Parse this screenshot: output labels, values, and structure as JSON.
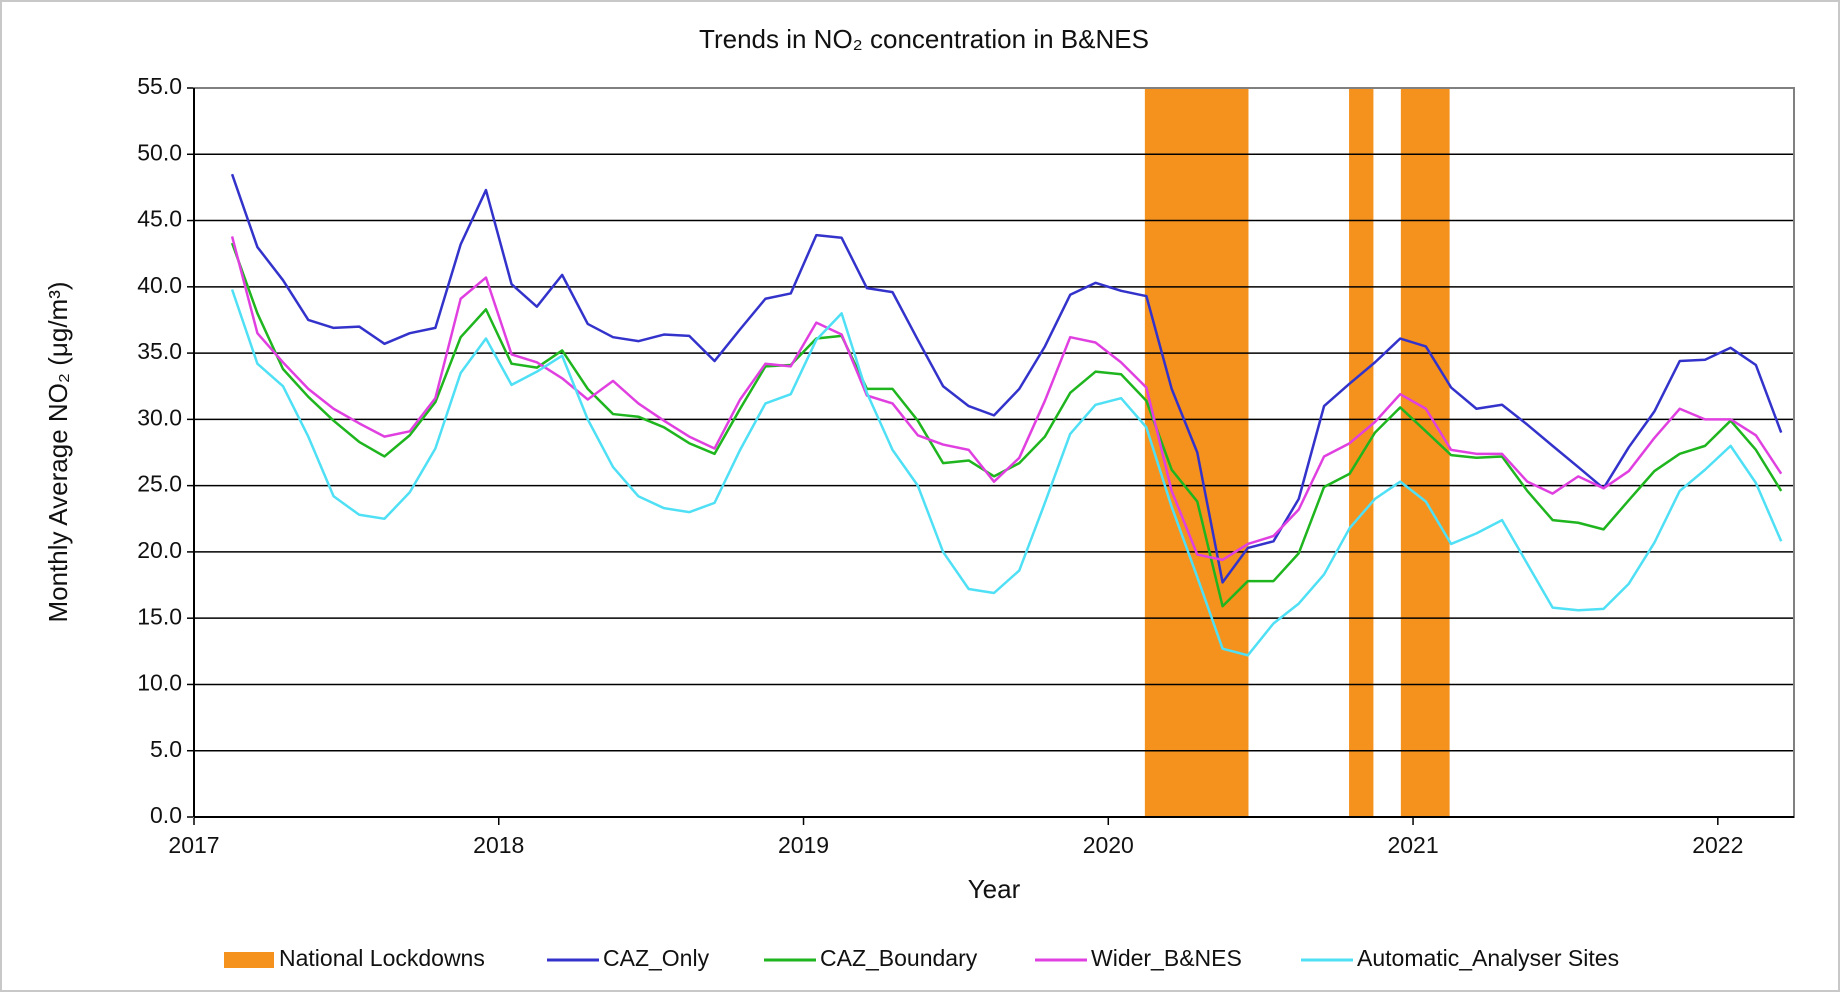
{
  "chart_data": {
    "type": "line",
    "title": "Trends in NO₂ concentration in B&NES",
    "x_label": "Year",
    "y_label": "Monthly Average NO₂ (μg/m³)",
    "xlim": [
      2017,
      2022.25
    ],
    "xticks": [
      2017,
      2018,
      2019,
      2020,
      2021,
      2022
    ],
    "ylim": [
      0,
      55
    ],
    "yticks": [
      {
        "value": 0,
        "label": "0.0"
      },
      {
        "value": 5,
        "label": "5.0"
      },
      {
        "value": 10,
        "label": "10.0"
      },
      {
        "value": 15,
        "label": "15.0"
      },
      {
        "value": 20,
        "label": "20.0"
      },
      {
        "value": 25,
        "label": "25.0"
      },
      {
        "value": 30,
        "label": "30.0"
      },
      {
        "value": 35,
        "label": "35.0"
      },
      {
        "value": 40,
        "label": "40.0"
      },
      {
        "value": 45,
        "label": "45.0"
      },
      {
        "value": 50,
        "label": "50.0"
      },
      {
        "value": 55,
        "label": "55.0"
      }
    ],
    "grid": true,
    "legend": "bottom",
    "lockdowns": {
      "name": "National Lockdowns",
      "color": "#f5921e",
      "ranges": [
        [
          2020.12,
          2020.46
        ],
        [
          2020.79,
          2020.87
        ],
        [
          2020.96,
          2021.12
        ]
      ]
    },
    "x": [
      2017.125,
      2017.208,
      2017.292,
      2017.375,
      2017.458,
      2017.542,
      2017.625,
      2017.708,
      2017.792,
      2017.875,
      2017.958,
      2018.042,
      2018.125,
      2018.208,
      2018.292,
      2018.375,
      2018.458,
      2018.542,
      2018.625,
      2018.708,
      2018.792,
      2018.875,
      2018.958,
      2019.042,
      2019.125,
      2019.208,
      2019.292,
      2019.375,
      2019.458,
      2019.542,
      2019.625,
      2019.708,
      2019.792,
      2019.875,
      2019.958,
      2020.042,
      2020.125,
      2020.208,
      2020.292,
      2020.375,
      2020.458,
      2020.542,
      2020.625,
      2020.708,
      2020.792,
      2020.875,
      2020.958,
      2021.042,
      2021.125,
      2021.208,
      2021.292,
      2021.375,
      2021.458,
      2021.542,
      2021.625,
      2021.708,
      2021.792,
      2021.875,
      2021.958,
      2022.042,
      2022.125,
      2022.208
    ],
    "series": [
      {
        "name": "CAZ_Only",
        "color": "#3333cc",
        "values": [
          48.5,
          43,
          40.5,
          37.5,
          36.9,
          37,
          35.7,
          36.5,
          36.9,
          43.2,
          47.3,
          40.2,
          38.5,
          40.9,
          37.2,
          36.2,
          35.9,
          36.4,
          36.3,
          34.4,
          36.8,
          39.1,
          39.5,
          43.9,
          43.7,
          39.9,
          39.6,
          36,
          32.5,
          31,
          30.3,
          32.3,
          35.5,
          39.4,
          40.3,
          39.7,
          39.3,
          32.3,
          27.5,
          17.7,
          20.3,
          20.8,
          24,
          31,
          32.7,
          34.3,
          36.1,
          35.5,
          32.4,
          30.8,
          31.1,
          29.6,
          28,
          26.4,
          24.8,
          27.9,
          30.6,
          34.4,
          34.5,
          35.4,
          34.1,
          29
        ]
      },
      {
        "name": "CAZ_Boundary",
        "color": "#1fb51f",
        "values": [
          43.3,
          38,
          33.8,
          31.7,
          29.9,
          28.3,
          27.2,
          28.8,
          31.3,
          36.2,
          38.3,
          34.2,
          33.9,
          35.2,
          32.3,
          30.4,
          30.2,
          29.4,
          28.2,
          27.4,
          30.8,
          34,
          34.1,
          36.1,
          36.3,
          32.3,
          32.3,
          29.9,
          26.7,
          26.9,
          25.7,
          26.7,
          28.7,
          32,
          33.6,
          33.4,
          31.4,
          26.2,
          23.8,
          15.9,
          17.8,
          17.8,
          19.9,
          24.9,
          25.9,
          29,
          30.9,
          29.1,
          27.3,
          27.1,
          27.2,
          24.6,
          22.4,
          22.2,
          21.7,
          23.9,
          26.1,
          27.4,
          28,
          29.9,
          27.7,
          24.6
        ]
      },
      {
        "name": "Wider_B&NES",
        "color": "#e040e0",
        "values": [
          43.8,
          36.5,
          34.3,
          32.3,
          30.8,
          29.7,
          28.7,
          29.1,
          31.6,
          39.1,
          40.7,
          34.9,
          34.3,
          33.1,
          31.5,
          32.9,
          31.2,
          29.9,
          28.7,
          27.8,
          31.5,
          34.2,
          34,
          37.3,
          36.4,
          31.8,
          31.2,
          28.8,
          28.1,
          27.7,
          25.3,
          27.1,
          31.4,
          36.2,
          35.8,
          34.3,
          32.4,
          24.6,
          19.8,
          19.4,
          20.6,
          21.2,
          23.2,
          27.2,
          28.2,
          29.8,
          31.9,
          30.8,
          27.7,
          27.4,
          27.4,
          25.3,
          24.4,
          25.7,
          24.8,
          26.1,
          28.6,
          30.8,
          30,
          30,
          28.8,
          25.9
        ]
      },
      {
        "name": "Automatic_Analyser Sites",
        "color": "#4fe0f5",
        "values": [
          39.8,
          34.2,
          32.5,
          28.7,
          24.2,
          22.8,
          22.5,
          24.5,
          27.8,
          33.5,
          36.1,
          32.6,
          33.6,
          34.8,
          30,
          26.4,
          24.2,
          23.3,
          23,
          23.7,
          27.7,
          31.2,
          31.9,
          36,
          38,
          32,
          27.7,
          25,
          20,
          17.2,
          16.9,
          18.6,
          23.7,
          28.9,
          31.1,
          31.6,
          29.4,
          23.4,
          18.1,
          12.7,
          12.2,
          14.6,
          16.1,
          18.3,
          21.8,
          24,
          25.3,
          23.8,
          20.6,
          21.4,
          22.4,
          19.1,
          15.8,
          15.6,
          15.7,
          17.6,
          20.7,
          24.6,
          26.2,
          28,
          25.2,
          20.8
        ]
      }
    ]
  }
}
